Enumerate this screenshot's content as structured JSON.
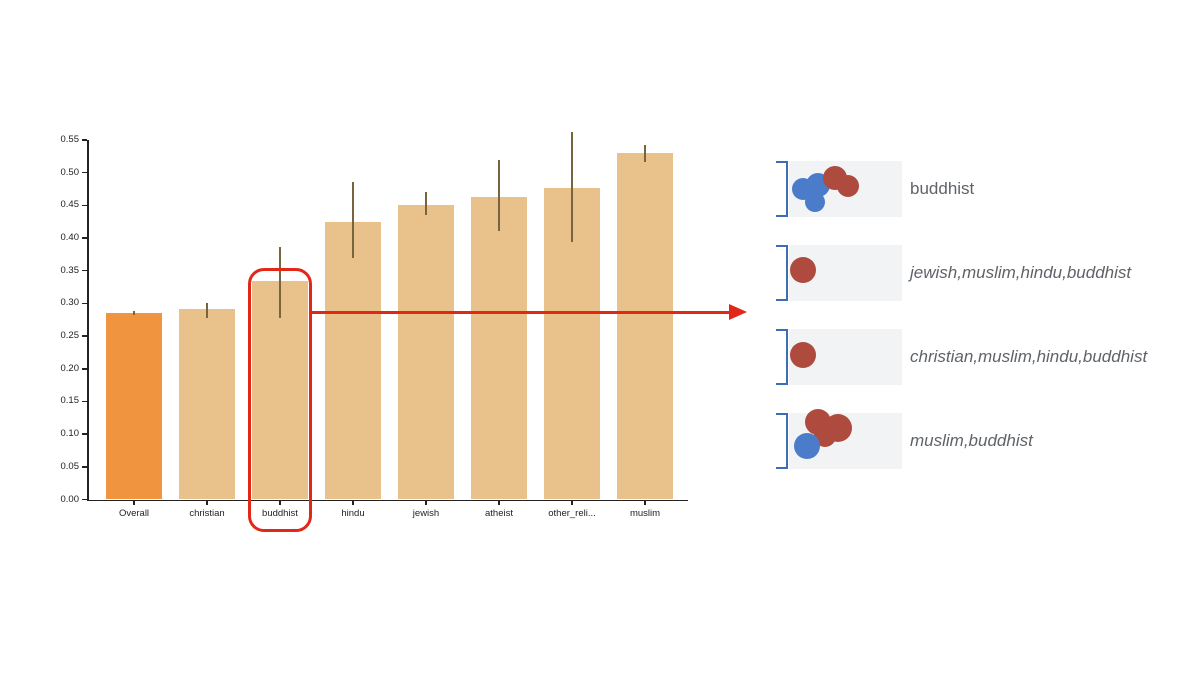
{
  "chart_data": {
    "type": "bar",
    "title": "",
    "xlabel": "",
    "ylabel": "",
    "categories": [
      "Overall",
      "christian",
      "buddhist",
      "hindu",
      "jewish",
      "atheist",
      "other_reli...",
      "muslim"
    ],
    "values": [
      0.285,
      0.291,
      0.334,
      0.425,
      0.45,
      0.463,
      0.476,
      0.53
    ],
    "errors_low": [
      0.282,
      0.278,
      0.277,
      0.369,
      0.435,
      0.41,
      0.394,
      0.517
    ],
    "errors_high": [
      0.288,
      0.301,
      0.387,
      0.486,
      0.471,
      0.519,
      0.563,
      0.542
    ],
    "bar_colors": [
      "#f0943f",
      "#e9c28b",
      "#e9c28b",
      "#e9c28b",
      "#e9c28b",
      "#e9c28b",
      "#e9c28b",
      "#e9c28b"
    ],
    "error_bar_color": "#77663d",
    "ylim": [
      0,
      0.55
    ],
    "ytick_step": 0.05,
    "yticks": [
      "0.00",
      "0.05",
      "0.10",
      "0.15",
      "0.20",
      "0.25",
      "0.30",
      "0.35",
      "0.40",
      "0.45",
      "0.50",
      "0.55"
    ],
    "grid": false,
    "legend_position": "none",
    "highlighted_category": "buddhist"
  },
  "annotation": {
    "color": "#e12717",
    "highlighted_category": "buddhist"
  },
  "panel": {
    "box_bg": "#f2f3f5",
    "bracket_color": "#3d6db5",
    "label_color": "#5f6368",
    "dot_colors": {
      "blue": "#4b7cc9",
      "red": "#ae4a3e"
    },
    "rows": [
      {
        "label": "buddhist",
        "italic": false,
        "dots": [
          {
            "color": "blue",
            "x": 14,
            "y": 28,
            "r": 11
          },
          {
            "color": "blue",
            "x": 29,
            "y": 24,
            "r": 12
          },
          {
            "color": "blue",
            "x": 26,
            "y": 41,
            "r": 10
          },
          {
            "color": "red",
            "x": 46,
            "y": 17,
            "r": 12
          },
          {
            "color": "red",
            "x": 59,
            "y": 25,
            "r": 11
          }
        ]
      },
      {
        "label": "jewish,muslim,hindu,buddhist",
        "italic": true,
        "dots": [
          {
            "color": "red",
            "x": 14,
            "y": 25,
            "r": 13
          }
        ]
      },
      {
        "label": "christian,muslim,hindu,buddhist",
        "italic": true,
        "dots": [
          {
            "color": "red",
            "x": 14,
            "y": 26,
            "r": 13
          }
        ]
      },
      {
        "label": "muslim,buddhist",
        "italic": true,
        "dots": [
          {
            "color": "red",
            "x": 29,
            "y": 9,
            "r": 13
          },
          {
            "color": "red",
            "x": 49,
            "y": 15,
            "r": 14
          },
          {
            "color": "red",
            "x": 36,
            "y": 23,
            "r": 11
          },
          {
            "color": "blue",
            "x": 18,
            "y": 33,
            "r": 13
          }
        ]
      }
    ]
  }
}
